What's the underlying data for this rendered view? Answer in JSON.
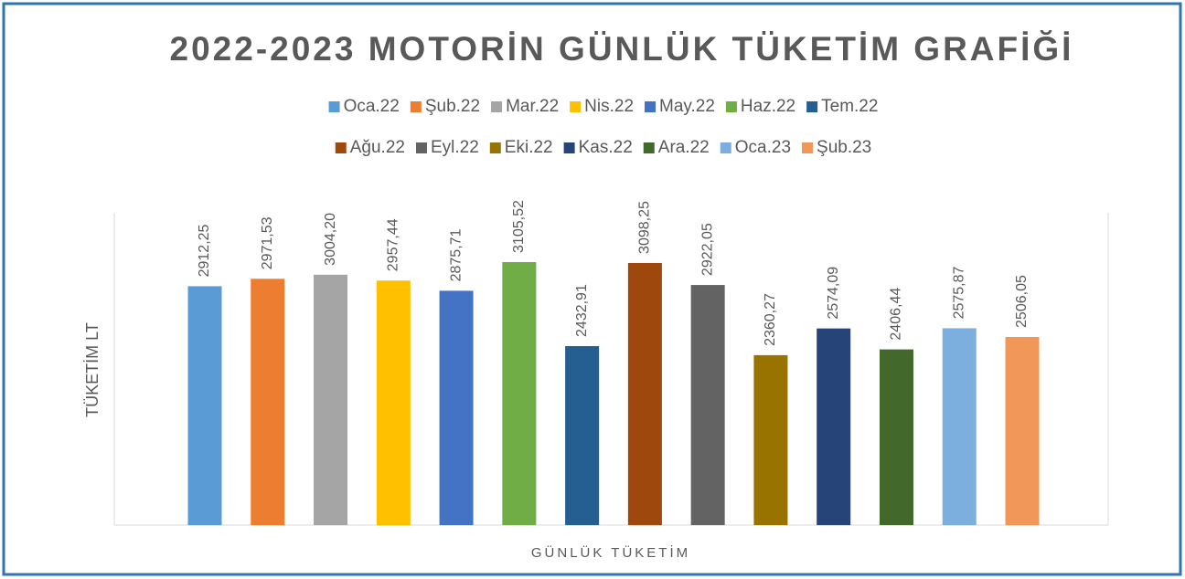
{
  "chart_data": {
    "type": "bar",
    "title": "2022-2023 MOTORİN GÜNLÜK TÜKETİM GRAFİĞİ",
    "x_label": "GÜNLÜK TÜKETİM",
    "y_label": "TÜKETİM LT",
    "ylim": [
      1000,
      3500
    ],
    "series": [
      {
        "name": "Oca.22",
        "color": "#5b9bd5",
        "values": [
          2912.25
        ],
        "value_labels": [
          "2912,25"
        ]
      },
      {
        "name": "Şub.22",
        "color": "#ed7d31",
        "values": [
          2971.53
        ],
        "value_labels": [
          "2971,53"
        ]
      },
      {
        "name": "Mar.22",
        "color": "#a5a5a5",
        "values": [
          3004.2
        ],
        "value_labels": [
          "3004,20"
        ]
      },
      {
        "name": "Nis.22",
        "color": "#ffc000",
        "values": [
          2957.44
        ],
        "value_labels": [
          "2957,44"
        ]
      },
      {
        "name": "May.22",
        "color": "#4472c4",
        "values": [
          2875.71
        ],
        "value_labels": [
          "2875,71"
        ]
      },
      {
        "name": "Haz.22",
        "color": "#70ad47",
        "values": [
          3105.52
        ],
        "value_labels": [
          "3105,52"
        ]
      },
      {
        "name": "Tem.22",
        "color": "#255e91",
        "values": [
          2432.91
        ],
        "value_labels": [
          "2432,91"
        ]
      },
      {
        "name": "Ağu.22",
        "color": "#9e480e",
        "values": [
          3098.25
        ],
        "value_labels": [
          "3098,25"
        ]
      },
      {
        "name": "Eyl.22",
        "color": "#636363",
        "values": [
          2922.05
        ],
        "value_labels": [
          "2922,05"
        ]
      },
      {
        "name": "Eki.22",
        "color": "#997300",
        "values": [
          2360.27
        ],
        "value_labels": [
          "2360,27"
        ]
      },
      {
        "name": "Kas.22",
        "color": "#264478",
        "values": [
          2574.09
        ],
        "value_labels": [
          "2574,09"
        ]
      },
      {
        "name": "Ara.22",
        "color": "#43682b",
        "values": [
          2406.44
        ],
        "value_labels": [
          "2406,44"
        ]
      },
      {
        "name": "Oca.23",
        "color": "#7cafdd",
        "values": [
          2575.87
        ],
        "value_labels": [
          "2575,87"
        ]
      },
      {
        "name": "Şub.23",
        "color": "#f1975a",
        "values": [
          2506.05
        ],
        "value_labels": [
          "2506,05"
        ]
      }
    ]
  }
}
